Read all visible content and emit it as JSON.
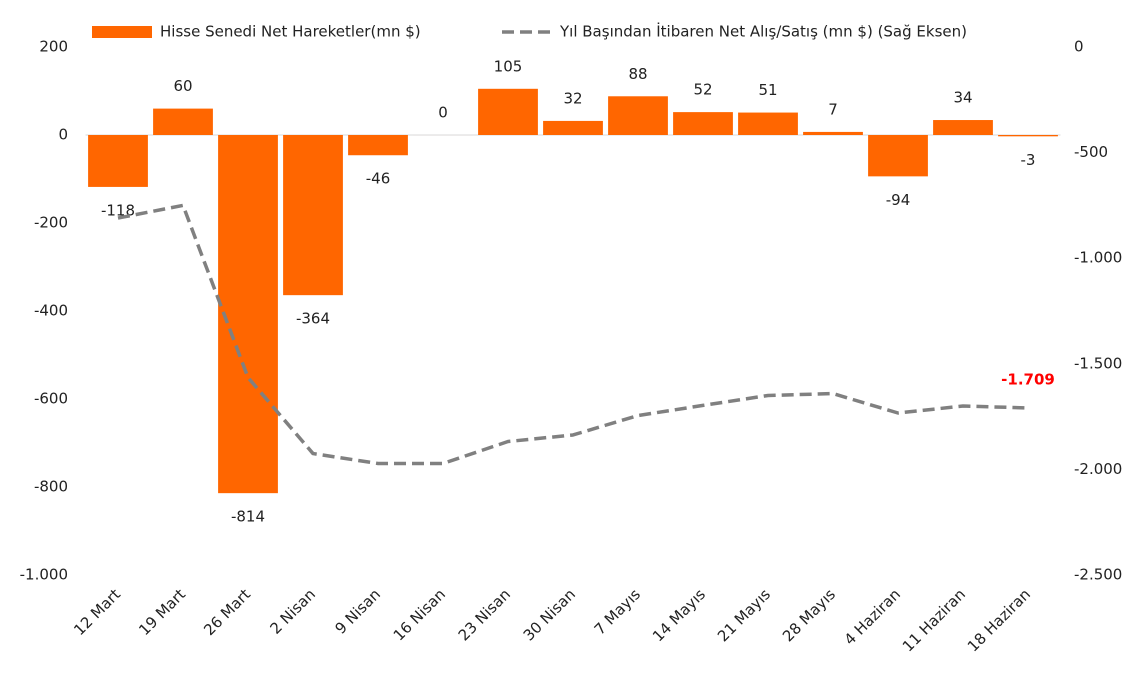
{
  "chart_data": {
    "type": "bar",
    "categories": [
      "12 Mart",
      "19 Mart",
      "26 Mart",
      "2 Nisan",
      "9 Nisan",
      "16 Nisan",
      "23 Nisan",
      "30 Nisan",
      "7 Mayıs",
      "14 Mayıs",
      "21 Mayıs",
      "28 Mayıs",
      "4 Haziran",
      "11 Haziran",
      "18 Haziran"
    ],
    "series": [
      {
        "name": "Hisse Senedi Net Hareketler(mn $)",
        "type": "bar",
        "color": "#ff6600",
        "values": [
          -118,
          60,
          -814,
          -364,
          -46,
          0,
          105,
          32,
          88,
          52,
          51,
          7,
          -94,
          34,
          -3
        ]
      },
      {
        "name": "Yıl Başından İtibaren Net Alış/Satış (mn $) (Sağ Eksen)",
        "type": "line",
        "axis": "y2",
        "color": "#808080",
        "dashed": true,
        "values": [
          -810,
          -750,
          -1565,
          -1925,
          -1972,
          -1972,
          -1868,
          -1837,
          -1745,
          -1697,
          -1650,
          -1641,
          -1733,
          -1700,
          -1709
        ],
        "value_labels": [
          null,
          null,
          null,
          null,
          null,
          null,
          null,
          null,
          null,
          null,
          null,
          null,
          null,
          null,
          "-1.709"
        ],
        "label_color": "#ff0000"
      }
    ],
    "ylim": [
      -1000,
      200
    ],
    "yticks": [
      200,
      0,
      -200,
      -400,
      -600,
      -800,
      {
        "value": -1000,
        "label": "-1.000"
      }
    ],
    "y2lim": [
      -2500,
      0
    ],
    "y2ticks": [
      0,
      -500,
      {
        "value": -1000,
        "label": "-1.000"
      },
      {
        "value": -1500,
        "label": "-1.500"
      },
      {
        "value": -2000,
        "label": "-2.000"
      },
      {
        "value": -2500,
        "label": "-2.500"
      }
    ],
    "grid": false,
    "legend": "top"
  }
}
